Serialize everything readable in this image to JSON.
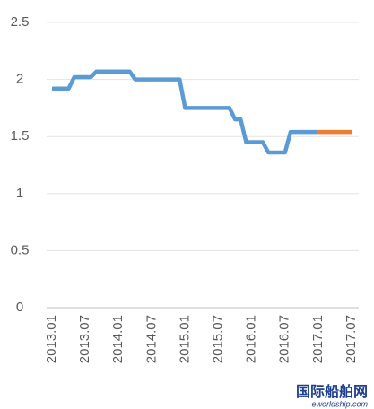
{
  "chart_data": {
    "type": "line",
    "categories": [
      "2013.01",
      null,
      null,
      null,
      null,
      null,
      "2013.07",
      null,
      null,
      null,
      null,
      null,
      "2014.01",
      null,
      null,
      null,
      null,
      null,
      "2014.07",
      null,
      null,
      null,
      null,
      null,
      "2015.01",
      null,
      null,
      null,
      null,
      null,
      "2015.07",
      null,
      null,
      null,
      null,
      null,
      "2016.01",
      null,
      null,
      null,
      null,
      null,
      "2016.07",
      null,
      null,
      null,
      null,
      null,
      "2017.01",
      null,
      null,
      null,
      null,
      null,
      "2017.07"
    ],
    "series": [
      {
        "color": "#5b9bd5",
        "values": [
          1.92,
          1.92,
          1.92,
          1.92,
          2.02,
          2.02,
          2.02,
          2.02,
          2.07,
          2.07,
          2.07,
          2.07,
          2.07,
          2.07,
          2.07,
          2.0,
          2.0,
          2.0,
          2.0,
          2.0,
          2.0,
          2.0,
          2.0,
          2.0,
          1.75,
          1.75,
          1.75,
          1.75,
          1.75,
          1.75,
          1.75,
          1.75,
          1.75,
          1.65,
          1.65,
          1.45,
          1.45,
          1.45,
          1.45,
          1.36,
          1.36,
          1.36,
          1.36,
          1.54,
          1.54,
          1.54,
          1.54,
          1.54,
          1.54,
          null,
          null,
          null,
          null,
          null,
          null
        ]
      },
      {
        "color": "#ed7d31",
        "values": [
          null,
          null,
          null,
          null,
          null,
          null,
          null,
          null,
          null,
          null,
          null,
          null,
          null,
          null,
          null,
          null,
          null,
          null,
          null,
          null,
          null,
          null,
          null,
          null,
          null,
          null,
          null,
          null,
          null,
          null,
          null,
          null,
          null,
          null,
          null,
          null,
          null,
          null,
          null,
          null,
          null,
          null,
          null,
          null,
          null,
          null,
          null,
          null,
          1.54,
          1.54,
          1.54,
          1.54,
          1.54,
          1.54,
          1.54
        ]
      }
    ],
    "ylim": [
      0,
      2.5
    ],
    "yticks": [
      0,
      0.5,
      1,
      1.5,
      2,
      2.5
    ],
    "grid": true,
    "watermark": "国际船舶网",
    "watermark_sub": "eworldship.com"
  }
}
